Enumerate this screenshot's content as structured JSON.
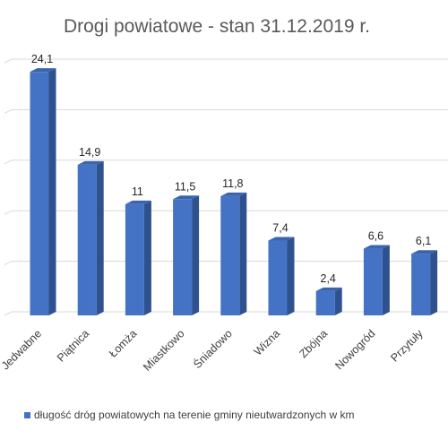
{
  "chart_data": {
    "type": "bar",
    "title": "Drogi powiatowe - stan 31.12.2019 r.",
    "categories": [
      "Jedwabne",
      "Piątnica",
      "Łomża",
      "Miastkowo",
      "Śniadowo",
      "Wizna",
      "Zbójna",
      "Nowogród",
      "Przytuły"
    ],
    "series": [
      {
        "name": "długość dróg powiatowych na terenie gminy nieutwardzonych w km",
        "values": [
          24.1,
          14.9,
          11,
          11.5,
          11.8,
          7.4,
          2.4,
          6.6,
          6.1
        ],
        "labels": [
          "24,1",
          "14,9",
          "11",
          "11,5",
          "11,8",
          "7,4",
          "2,4",
          "6,6",
          "6,1"
        ],
        "color": "#4472C4"
      }
    ],
    "ylim": [
      0,
      25
    ],
    "grid": true,
    "legend": "bottom",
    "bar_style": "3d"
  }
}
